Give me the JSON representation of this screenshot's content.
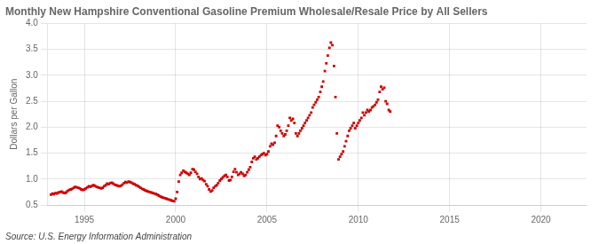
{
  "chart_data": {
    "type": "scatter",
    "title": "Monthly New Hampshire Conventional Gasoline Premium Wholesale/Resale Price by All Sellers",
    "ylabel": "Dollars per Gallon",
    "annotations": [
      "Source: U.S. Energy Information Administration"
    ],
    "color": "#cc0000",
    "marker": "square",
    "grid": true,
    "xlim": [
      1993.0,
      2022.5
    ],
    "ylim": [
      0.5,
      4.0
    ],
    "xticks": [
      1995,
      2000,
      2005,
      2010,
      2015,
      2020
    ],
    "yticks": [
      0.5,
      {
        "value": 1.0,
        "label": "1.0"
      },
      1.5,
      {
        "value": 2.0,
        "label": "2.0"
      },
      2.5,
      {
        "value": 3.0,
        "label": "3.0"
      },
      3.5,
      {
        "value": 4.0,
        "label": "4.0"
      }
    ],
    "x": [
      1993.17,
      1993.25,
      1993.33,
      1993.42,
      1993.5,
      1993.58,
      1993.67,
      1993.75,
      1993.83,
      1993.92,
      1994.0,
      1994.08,
      1994.17,
      1994.25,
      1994.33,
      1994.42,
      1994.5,
      1994.58,
      1994.67,
      1994.75,
      1994.83,
      1994.92,
      1995.0,
      1995.08,
      1995.17,
      1995.25,
      1995.33,
      1995.42,
      1995.5,
      1995.58,
      1995.67,
      1995.75,
      1995.83,
      1995.92,
      1996.0,
      1996.08,
      1996.17,
      1996.25,
      1996.33,
      1996.42,
      1996.5,
      1996.58,
      1996.67,
      1996.75,
      1996.83,
      1996.92,
      1997.0,
      1997.08,
      1997.17,
      1997.25,
      1997.33,
      1997.42,
      1997.5,
      1997.58,
      1997.67,
      1997.75,
      1997.83,
      1997.92,
      1998.0,
      1998.08,
      1998.17,
      1998.25,
      1998.33,
      1998.42,
      1998.5,
      1998.58,
      1998.67,
      1998.75,
      1998.83,
      1998.92,
      1999.0,
      1999.08,
      1999.17,
      1999.25,
      1999.33,
      1999.42,
      1999.5,
      1999.58,
      1999.67,
      1999.75,
      1999.83,
      1999.92,
      2000.0,
      2000.08,
      2000.17,
      2000.25,
      2000.33,
      2000.42,
      2000.5,
      2000.58,
      2000.67,
      2000.75,
      2000.83,
      2000.92,
      2001.0,
      2001.08,
      2001.17,
      2001.25,
      2001.33,
      2001.42,
      2001.5,
      2001.58,
      2001.67,
      2001.75,
      2001.83,
      2001.92,
      2002.0,
      2002.08,
      2002.17,
      2002.25,
      2002.33,
      2002.42,
      2002.5,
      2002.58,
      2002.67,
      2002.75,
      2002.83,
      2002.92,
      2003.0,
      2003.08,
      2003.17,
      2003.25,
      2003.33,
      2003.42,
      2003.5,
      2003.58,
      2003.67,
      2003.75,
      2003.83,
      2003.92,
      2004.0,
      2004.08,
      2004.17,
      2004.25,
      2004.33,
      2004.42,
      2004.5,
      2004.58,
      2004.67,
      2004.75,
      2004.83,
      2004.92,
      2005.0,
      2005.08,
      2005.17,
      2005.25,
      2005.33,
      2005.42,
      2005.5,
      2005.58,
      2005.67,
      2005.75,
      2005.83,
      2005.92,
      2006.0,
      2006.08,
      2006.17,
      2006.25,
      2006.33,
      2006.42,
      2006.5,
      2006.58,
      2006.67,
      2006.75,
      2006.83,
      2006.92,
      2007.0,
      2007.08,
      2007.17,
      2007.25,
      2007.33,
      2007.42,
      2007.5,
      2007.58,
      2007.67,
      2007.75,
      2007.83,
      2007.92,
      2008.0,
      2008.08,
      2008.17,
      2008.25,
      2008.33,
      2008.42,
      2008.5,
      2008.58,
      2008.67,
      2008.75,
      2008.83,
      2008.92,
      2009.0,
      2009.08,
      2009.17,
      2009.25,
      2009.33,
      2009.42,
      2009.5,
      2009.58,
      2009.67,
      2009.75,
      2009.83,
      2009.92,
      2010.0,
      2010.08,
      2010.17,
      2010.25,
      2010.33,
      2010.42,
      2010.5,
      2010.58,
      2010.67,
      2010.75,
      2010.83,
      2010.92,
      2011.0,
      2011.08,
      2011.17,
      2011.25,
      2011.33,
      2011.42,
      2011.5,
      2011.58,
      2011.67,
      2011.75
    ],
    "values": [
      0.7,
      0.72,
      0.71,
      0.73,
      0.72,
      0.74,
      0.75,
      0.76,
      0.74,
      0.73,
      0.74,
      0.77,
      0.79,
      0.8,
      0.81,
      0.83,
      0.85,
      0.84,
      0.83,
      0.82,
      0.8,
      0.79,
      0.8,
      0.82,
      0.84,
      0.86,
      0.85,
      0.87,
      0.88,
      0.87,
      0.85,
      0.84,
      0.83,
      0.82,
      0.83,
      0.86,
      0.88,
      0.91,
      0.9,
      0.92,
      0.93,
      0.91,
      0.89,
      0.88,
      0.87,
      0.86,
      0.87,
      0.89,
      0.92,
      0.94,
      0.93,
      0.95,
      0.94,
      0.93,
      0.91,
      0.9,
      0.88,
      0.87,
      0.85,
      0.83,
      0.81,
      0.8,
      0.78,
      0.77,
      0.76,
      0.75,
      0.74,
      0.73,
      0.72,
      0.71,
      0.7,
      0.68,
      0.66,
      0.65,
      0.64,
      0.63,
      0.62,
      0.61,
      0.6,
      0.59,
      0.58,
      0.57,
      0.62,
      0.75,
      0.95,
      1.08,
      1.12,
      1.16,
      1.14,
      1.12,
      1.1,
      1.08,
      1.12,
      1.19,
      1.18,
      1.14,
      1.1,
      1.04,
      1.0,
      1.01,
      0.98,
      0.96,
      0.9,
      0.86,
      0.8,
      0.76,
      0.78,
      0.83,
      0.86,
      0.88,
      0.92,
      0.97,
      1.0,
      1.03,
      1.06,
      1.08,
      1.04,
      0.97,
      0.98,
      1.04,
      1.14,
      1.19,
      1.13,
      1.08,
      1.1,
      1.13,
      1.1,
      1.06,
      1.08,
      1.13,
      1.18,
      1.23,
      1.33,
      1.4,
      1.43,
      1.38,
      1.4,
      1.43,
      1.46,
      1.48,
      1.5,
      1.46,
      1.48,
      1.53,
      1.63,
      1.68,
      1.66,
      1.7,
      1.83,
      2.03,
      2.0,
      1.93,
      1.88,
      1.83,
      1.86,
      1.93,
      2.03,
      2.18,
      2.13,
      2.16,
      2.08,
      1.88,
      1.83,
      1.88,
      1.93,
      1.98,
      2.03,
      2.08,
      2.13,
      2.18,
      2.23,
      2.28,
      2.38,
      2.43,
      2.48,
      2.53,
      2.58,
      2.68,
      2.78,
      2.88,
      3.08,
      3.23,
      3.38,
      3.53,
      3.63,
      3.58,
      3.18,
      2.58,
      1.88,
      1.38,
      1.43,
      1.48,
      1.53,
      1.63,
      1.73,
      1.83,
      1.93,
      1.98,
      2.03,
      2.08,
      1.98,
      2.03,
      2.08,
      2.13,
      2.18,
      2.28,
      2.23,
      2.28,
      2.33,
      2.3,
      2.33,
      2.38,
      2.4,
      2.43,
      2.48,
      2.53,
      2.68,
      2.78,
      2.73,
      2.76,
      2.5,
      2.45,
      2.33,
      2.3
    ]
  }
}
